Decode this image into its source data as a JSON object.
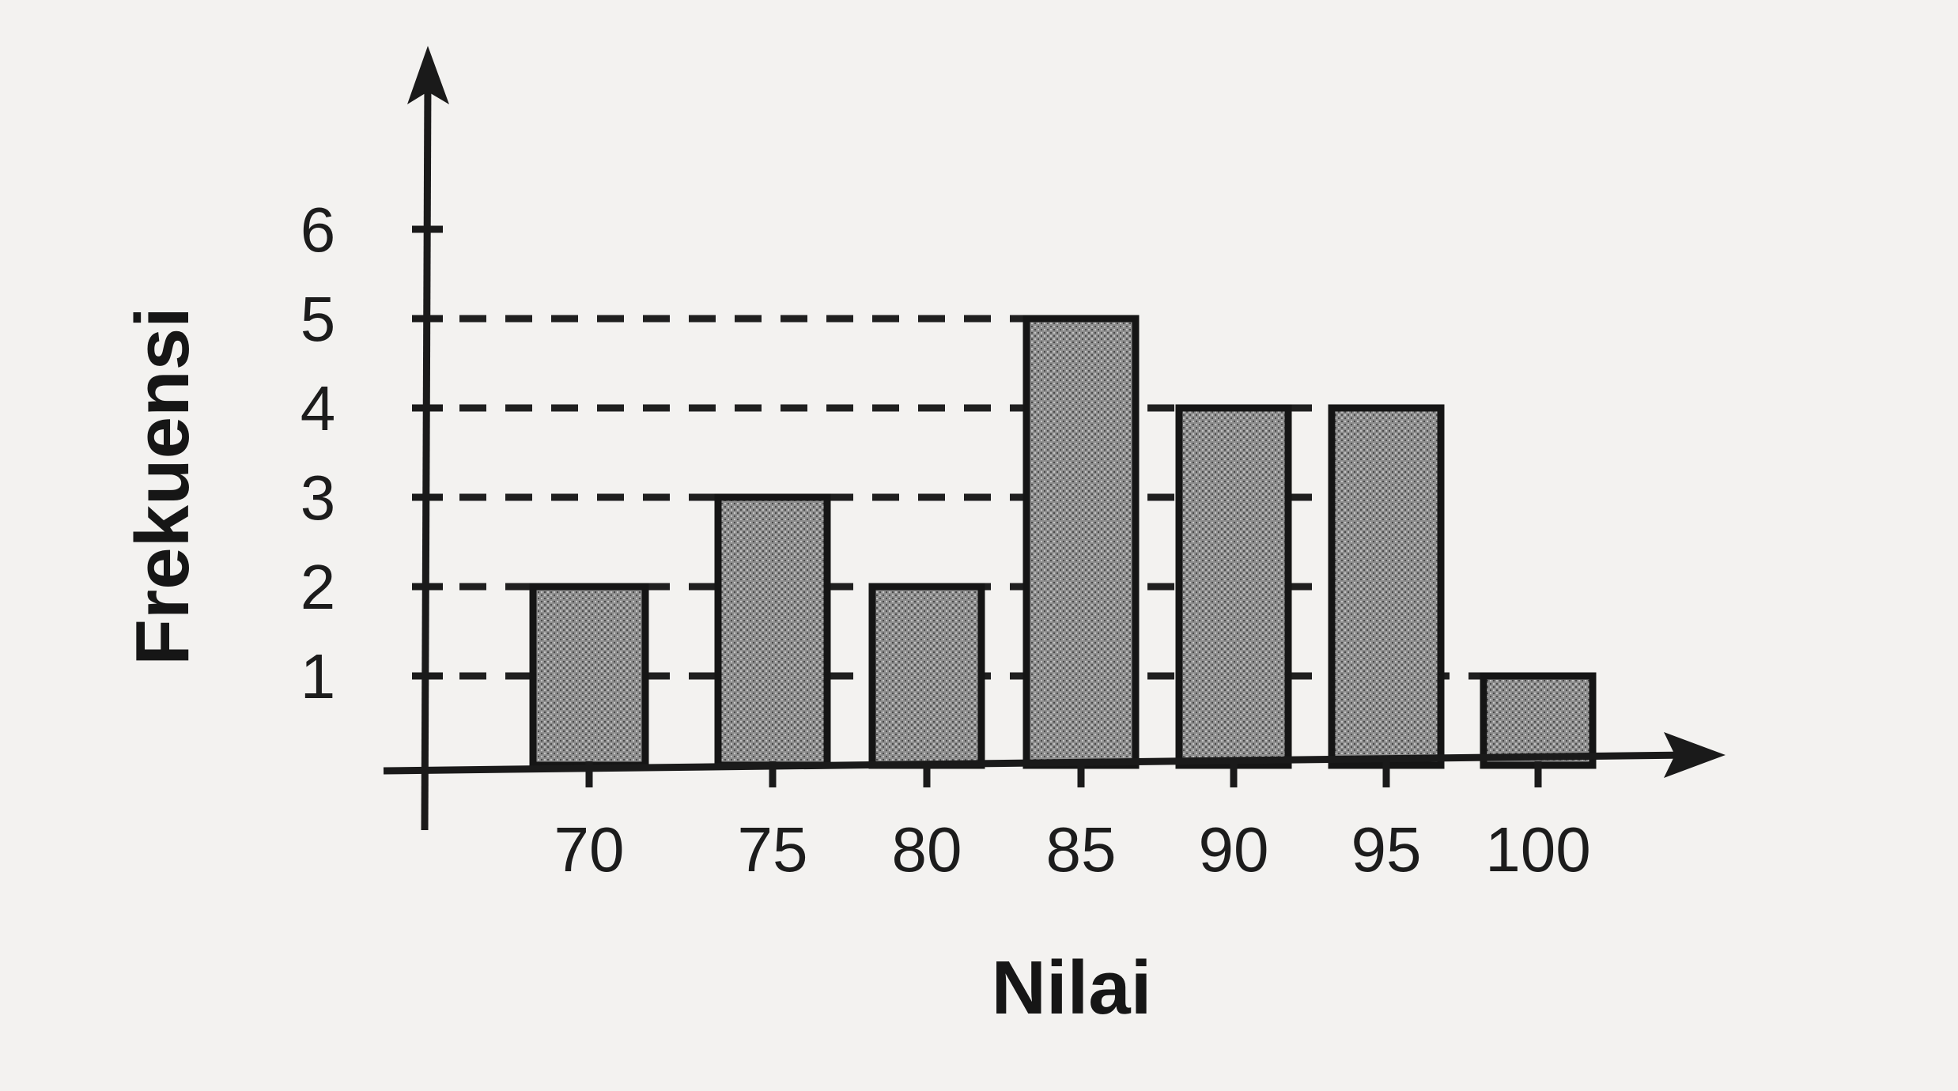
{
  "chart_data": {
    "type": "bar",
    "title": "",
    "xlabel": "Nilai",
    "ylabel": "Frekuensi",
    "categories": [
      "70",
      "75",
      "80",
      "85",
      "90",
      "95",
      "100"
    ],
    "values": [
      2,
      3,
      2,
      5,
      4,
      4,
      1
    ],
    "yticks": [
      "1",
      "2",
      "3",
      "4",
      "5",
      "6"
    ],
    "ylim": [
      0,
      6
    ],
    "grid": false,
    "legend": "none",
    "guide_lines": "dashed lines from the y-axis at 1, 2, 3, 4 and 5",
    "colors": {
      "bar_fill": "#8d8d8d",
      "ink": "#1a1a1a",
      "paper": "#f3f2f0"
    }
  }
}
